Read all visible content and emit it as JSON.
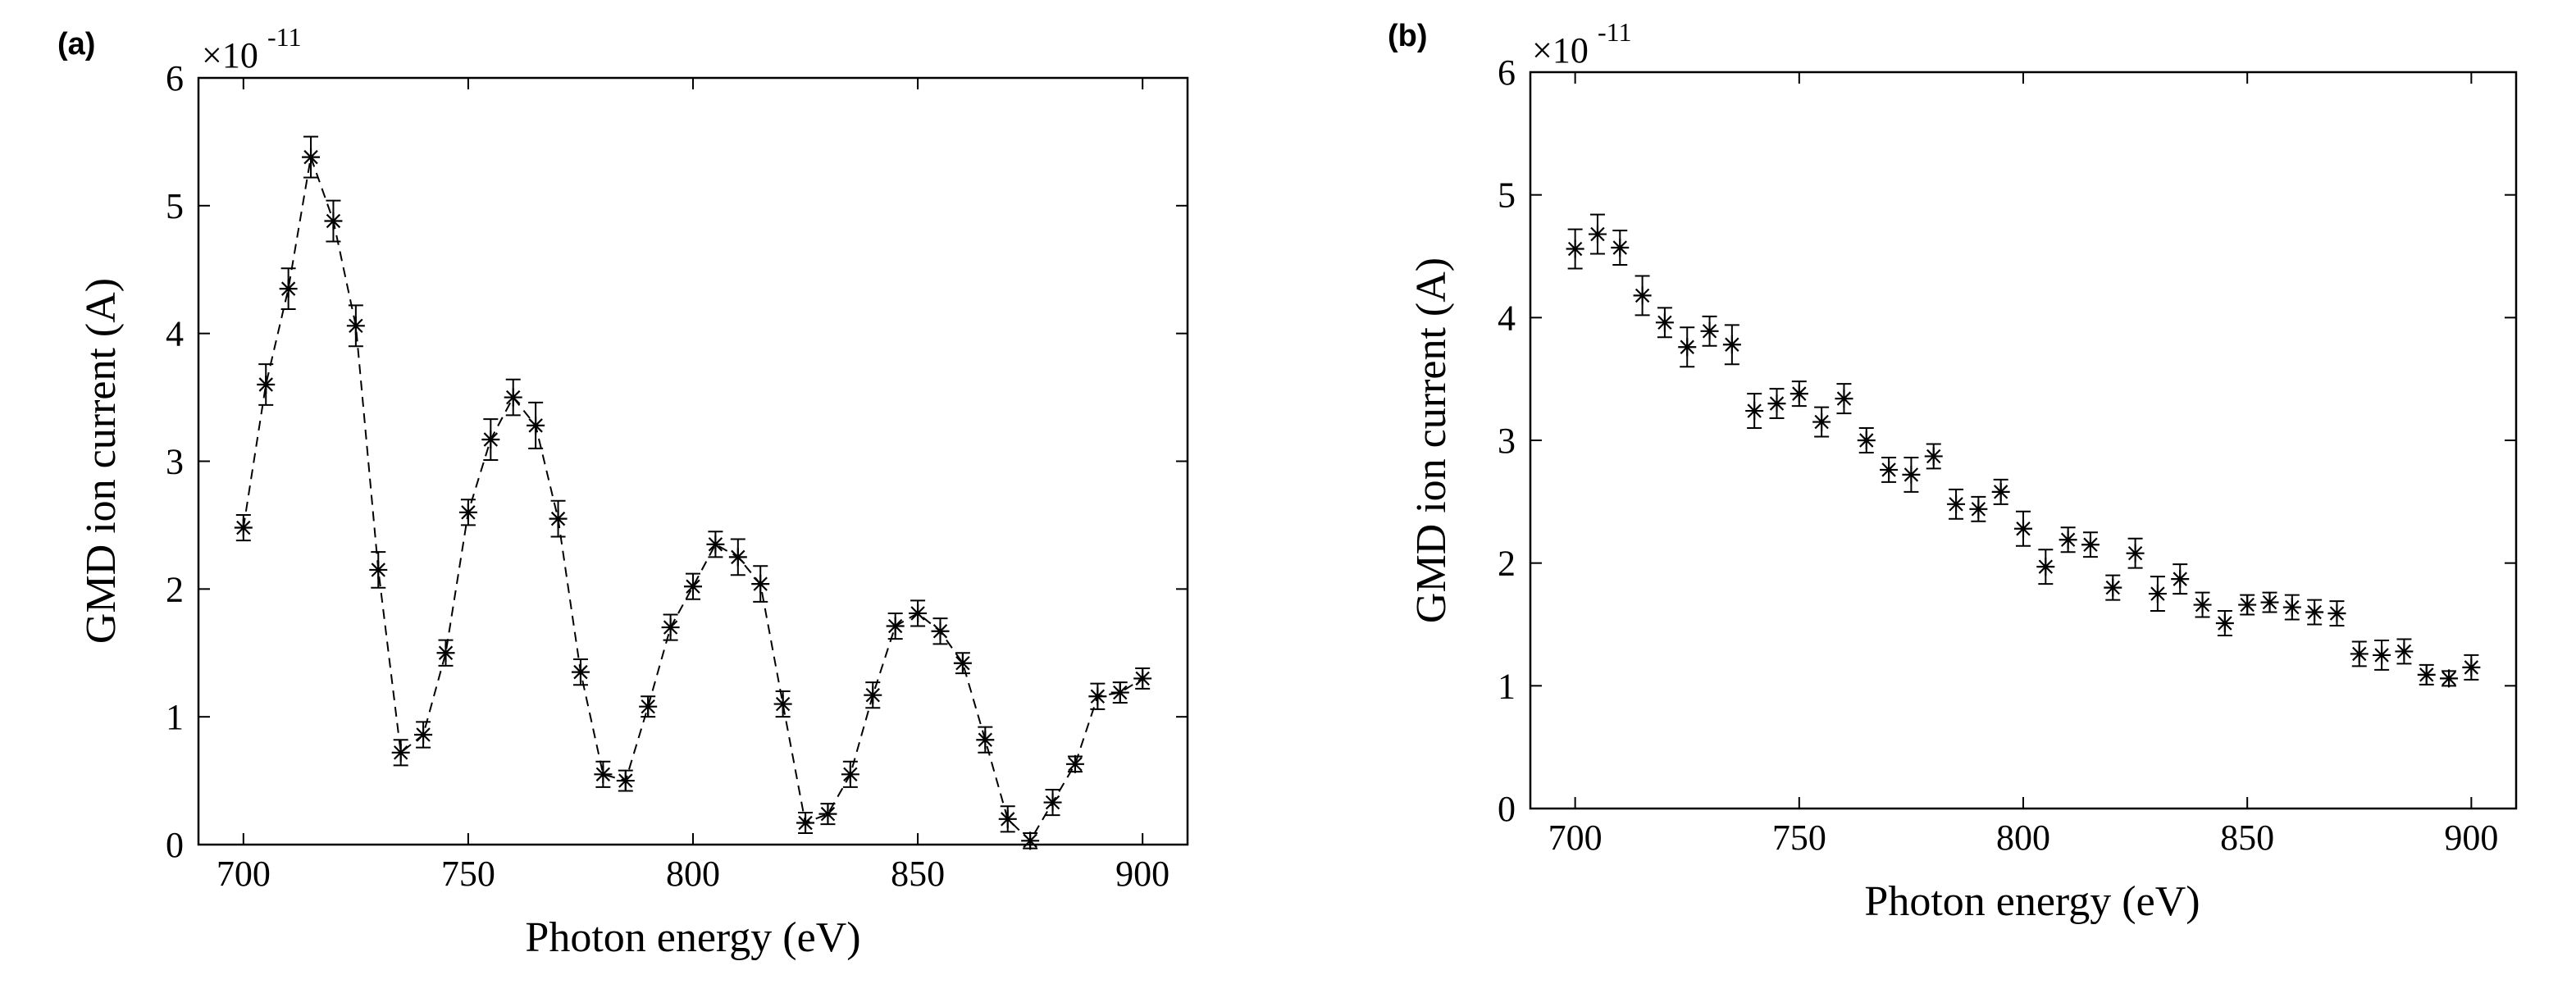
{
  "chart_data": [
    {
      "panel": "(a)",
      "type": "scatter",
      "connected": true,
      "line_style": "dashed",
      "marker": "asterisk",
      "error_bars": true,
      "xlabel": "Photon energy (eV)",
      "ylabel": "GMD ion current (A)",
      "y_exponent_label": "×10",
      "y_exponent": "-11",
      "xlim": [
        690,
        910
      ],
      "ylim": [
        0,
        6
      ],
      "xticks": [
        700,
        750,
        800,
        850,
        900
      ],
      "yticks": [
        0,
        1,
        2,
        3,
        4,
        5,
        6
      ],
      "x": [
        700,
        705,
        710,
        715,
        720,
        725,
        730,
        735,
        740,
        745,
        750,
        755,
        760,
        765,
        770,
        775,
        780,
        785,
        790,
        795,
        800,
        805,
        810,
        815,
        820,
        825,
        830,
        835,
        840,
        845,
        850,
        855,
        860,
        865,
        870,
        875,
        880,
        885,
        890,
        895,
        900
      ],
      "y": [
        2.48,
        3.6,
        4.35,
        5.38,
        4.88,
        4.06,
        2.15,
        0.72,
        0.86,
        1.5,
        2.6,
        3.17,
        3.5,
        3.28,
        2.55,
        1.35,
        0.55,
        0.5,
        1.08,
        1.7,
        2.02,
        2.35,
        2.25,
        2.04,
        1.1,
        0.17,
        0.24,
        0.55,
        1.17,
        1.71,
        1.81,
        1.67,
        1.42,
        0.82,
        0.2,
        0.03,
        0.33,
        0.63,
        1.16,
        1.19,
        1.3
      ],
      "yerr": [
        0.1,
        0.16,
        0.16,
        0.16,
        0.16,
        0.16,
        0.14,
        0.1,
        0.1,
        0.1,
        0.1,
        0.16,
        0.14,
        0.18,
        0.14,
        0.1,
        0.1,
        0.08,
        0.08,
        0.1,
        0.1,
        0.1,
        0.14,
        0.14,
        0.1,
        0.08,
        0.08,
        0.1,
        0.1,
        0.1,
        0.1,
        0.1,
        0.08,
        0.1,
        0.1,
        0.06,
        0.1,
        0.06,
        0.1,
        0.08,
        0.08
      ]
    },
    {
      "panel": "(b)",
      "type": "scatter",
      "connected": false,
      "marker": "asterisk",
      "error_bars": true,
      "xlabel": "Photon energy (eV)",
      "ylabel": "GMD ion current (A)",
      "y_exponent_label": "×10",
      "y_exponent": "-11",
      "xlim": [
        690,
        910
      ],
      "ylim": [
        0,
        6
      ],
      "xticks": [
        700,
        750,
        800,
        850,
        900
      ],
      "yticks": [
        0,
        1,
        2,
        3,
        4,
        5,
        6
      ],
      "x": [
        700,
        705,
        710,
        715,
        720,
        725,
        730,
        735,
        740,
        745,
        750,
        755,
        760,
        765,
        770,
        775,
        780,
        785,
        790,
        795,
        800,
        805,
        810,
        815,
        820,
        825,
        830,
        835,
        840,
        845,
        850,
        855,
        860,
        865,
        870,
        875,
        880,
        885,
        890,
        895,
        900
      ],
      "y": [
        4.56,
        4.68,
        4.57,
        4.18,
        3.96,
        3.76,
        3.89,
        3.78,
        3.24,
        3.3,
        3.38,
        3.15,
        3.34,
        3.0,
        2.76,
        2.72,
        2.87,
        2.48,
        2.44,
        2.58,
        2.28,
        1.97,
        2.19,
        2.15,
        1.8,
        2.08,
        1.75,
        1.87,
        1.66,
        1.51,
        1.66,
        1.68,
        1.64,
        1.6,
        1.59,
        1.26,
        1.25,
        1.28,
        1.09,
        1.06,
        1.15
      ],
      "yerr": [
        0.16,
        0.16,
        0.14,
        0.16,
        0.12,
        0.16,
        0.12,
        0.16,
        0.14,
        0.12,
        0.1,
        0.12,
        0.12,
        0.1,
        0.1,
        0.14,
        0.1,
        0.12,
        0.1,
        0.1,
        0.14,
        0.14,
        0.1,
        0.1,
        0.1,
        0.12,
        0.14,
        0.12,
        0.1,
        0.1,
        0.08,
        0.08,
        0.1,
        0.1,
        0.1,
        0.1,
        0.12,
        0.1,
        0.08,
        0.06,
        0.1
      ]
    }
  ]
}
